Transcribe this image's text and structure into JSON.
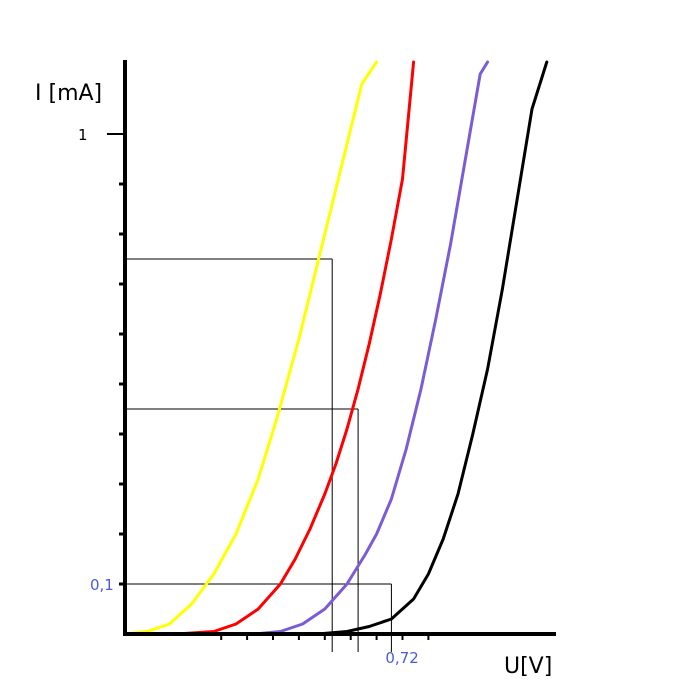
{
  "chart_data": {
    "type": "line",
    "title": "",
    "xlabel": "U[V]",
    "ylabel": "I [mA]",
    "x_tick_labels": [
      {
        "x": 0.72,
        "text": "0,72"
      }
    ],
    "y_tick_labels": [
      {
        "y": 1,
        "text": "1"
      },
      {
        "y": 0.1,
        "text": "0,1"
      }
    ],
    "grid": false,
    "legend": "none",
    "y_ticks_minor": [
      0.1,
      0.2,
      0.3,
      0.4,
      0.5,
      0.6,
      0.7,
      0.8,
      0.9,
      1.0
    ],
    "x_ticks_minor": [
      0.26,
      0.33,
      0.4,
      0.47,
      0.54,
      0.61,
      0.68,
      0.75,
      0.82
    ],
    "xlim": [
      0,
      1.14
    ],
    "ylim": [
      0,
      1.15
    ],
    "series": [
      {
        "color": "#ffff00",
        "x": [
          0.0,
          0.06,
          0.12,
          0.18,
          0.24,
          0.3,
          0.36,
          0.41,
          0.44,
          0.47,
          0.5,
          0.53,
          0.56,
          0.6,
          0.64,
          0.68
        ],
        "y": [
          0.0,
          0.005,
          0.02,
          0.06,
          0.12,
          0.2,
          0.31,
          0.43,
          0.51,
          0.59,
          0.68,
          0.77,
          0.86,
          0.98,
          1.1,
          1.25
        ]
      },
      {
        "color": "#ff0000",
        "x": [
          0.14,
          0.24,
          0.3,
          0.36,
          0.42,
          0.46,
          0.5,
          0.54,
          0.57,
          0.6,
          0.63,
          0.66,
          0.69,
          0.72,
          0.75,
          0.78
        ],
        "y": [
          0.0,
          0.005,
          0.02,
          0.05,
          0.1,
          0.15,
          0.21,
          0.28,
          0.34,
          0.41,
          0.49,
          0.58,
          0.68,
          0.79,
          0.91,
          1.25
        ]
      },
      {
        "color": "#7b5cd6",
        "x": [
          0.35,
          0.42,
          0.48,
          0.54,
          0.6,
          0.65,
          0.68,
          0.72,
          0.76,
          0.8,
          0.84,
          0.88,
          0.92,
          0.96,
          0.98
        ],
        "y": [
          0.0,
          0.005,
          0.02,
          0.05,
          0.1,
          0.16,
          0.2,
          0.27,
          0.37,
          0.49,
          0.63,
          0.78,
          0.95,
          1.12,
          1.25
        ]
      },
      {
        "color": "#000000",
        "x": [
          0.52,
          0.6,
          0.66,
          0.72,
          0.78,
          0.82,
          0.86,
          0.9,
          0.94,
          0.98,
          1.02,
          1.06,
          1.1,
          1.14
        ],
        "y": [
          0.0,
          0.005,
          0.015,
          0.03,
          0.07,
          0.12,
          0.19,
          0.28,
          0.4,
          0.53,
          0.69,
          0.87,
          1.05,
          1.25
        ]
      }
    ],
    "guides": [
      {
        "x": 0.56,
        "y": 0.75
      },
      {
        "x": 0.63,
        "y": 0.45
      },
      {
        "x": 0.72,
        "y": 0.1
      }
    ],
    "colors": {
      "axis": "#000000",
      "tick_label_blue": "#4b5bd6",
      "guide": "#000000"
    }
  }
}
